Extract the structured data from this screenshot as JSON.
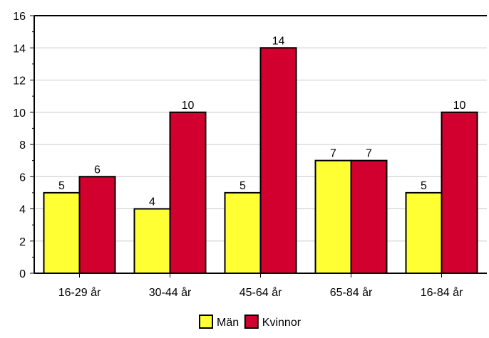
{
  "chart_data": {
    "type": "bar",
    "categories": [
      "16-29 år",
      "30-44 år",
      "45-64 år",
      "65-84 år",
      "16-84 år"
    ],
    "series": [
      {
        "name": "Män",
        "values": [
          5,
          4,
          5,
          7,
          5
        ],
        "color": "#ffff33"
      },
      {
        "name": "Kvinnor",
        "values": [
          6,
          10,
          14,
          7,
          10
        ],
        "color": "#d2002e"
      }
    ],
    "ylim": [
      0,
      16
    ],
    "yticks": [
      0,
      2,
      4,
      6,
      8,
      10,
      12,
      14,
      16
    ],
    "grid": true,
    "legend_position": "bottom-center"
  }
}
